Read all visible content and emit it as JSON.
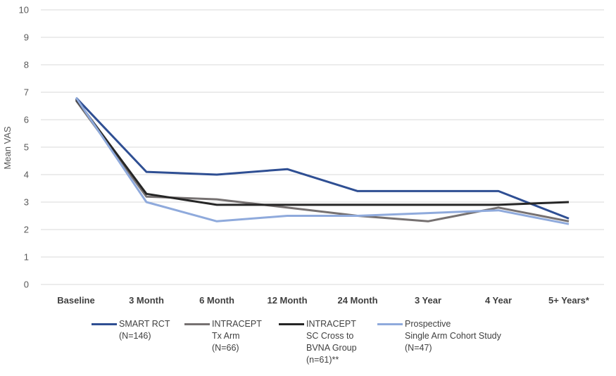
{
  "chart_data": {
    "type": "line",
    "title": "",
    "xlabel": "",
    "ylabel": "Mean VAS",
    "ylim": [
      0,
      10
    ],
    "yticks": [
      "0",
      "1",
      "2",
      "3",
      "4",
      "5",
      "6",
      "7",
      "8",
      "9",
      "10"
    ],
    "categories": [
      "Baseline",
      "3 Month",
      "6 Month",
      "12 Month",
      "24 Month",
      "3 Year",
      "4 Year",
      "5+ Years*"
    ],
    "grid": true,
    "legend_position": "bottom",
    "series": [
      {
        "name": "SMART RCT\n(N=146)",
        "color": "#2f4f93",
        "values": [
          6.8,
          4.1,
          4.0,
          4.2,
          3.4,
          3.4,
          3.4,
          2.4
        ]
      },
      {
        "name": "INTRACEPT\nTx Arm\n(N=66)",
        "color": "#767171",
        "values": [
          6.7,
          3.2,
          3.1,
          2.8,
          2.5,
          2.3,
          2.8,
          2.3
        ]
      },
      {
        "name": "INTRACEPT\nSC Cross to\nBVNA Group\n(n=61)**",
        "color": "#262626",
        "values": [
          6.75,
          3.3,
          2.9,
          2.9,
          2.9,
          2.9,
          2.9,
          3.0
        ]
      },
      {
        "name": "Prospective\nSingle Arm Cohort Study\n(N=47)",
        "color": "#8faadc",
        "values": [
          6.8,
          3.0,
          2.3,
          2.5,
          2.5,
          2.6,
          2.7,
          2.2
        ]
      }
    ]
  }
}
